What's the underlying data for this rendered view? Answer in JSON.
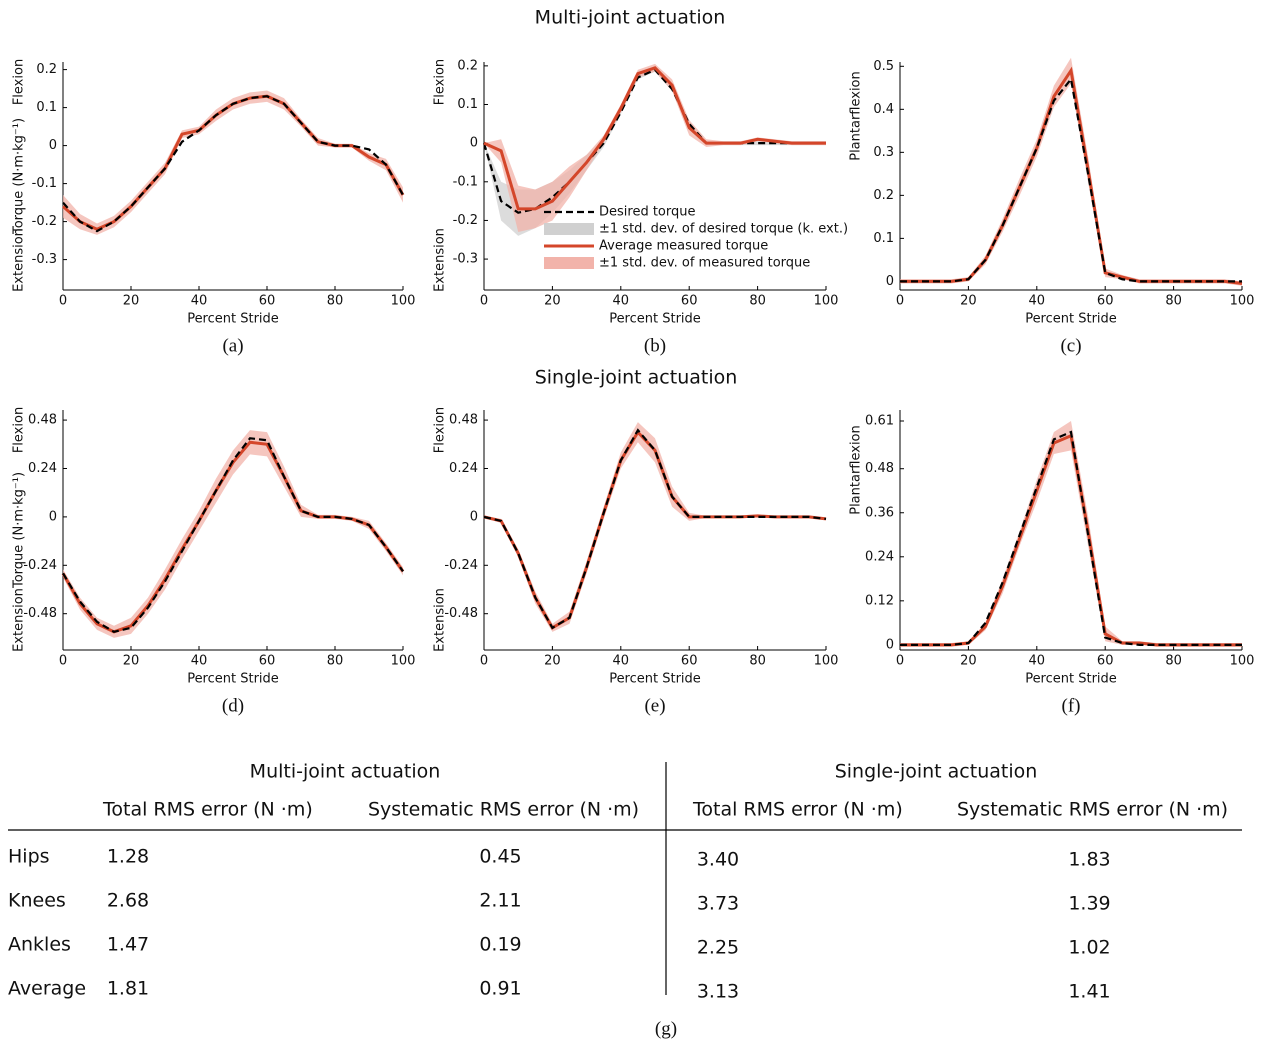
{
  "headings": [
    "Multi-joint actuation",
    "Single-joint actuation"
  ],
  "chart_data": [
    {
      "type": "line",
      "caption": "(a)",
      "xlabel": "Percent Stride",
      "ylabel": "Torque (N·m·kg⁻¹)",
      "ylabel_top": "Flexion",
      "ylabel_bottom": "Extension",
      "x": [
        0,
        5,
        10,
        15,
        20,
        25,
        30,
        35,
        40,
        45,
        50,
        55,
        60,
        65,
        70,
        75,
        80,
        85,
        90,
        95,
        100
      ],
      "xlim": [
        0,
        100
      ],
      "xticks": [
        0,
        20,
        40,
        60,
        80,
        100
      ],
      "ylim": [
        -0.38,
        0.22
      ],
      "yticks": [
        -0.3,
        -0.2,
        -0.1,
        0,
        0.1,
        0.2
      ],
      "series": [
        {
          "color": "#d4462a",
          "dash": false,
          "std_color": "#f2b3aa",
          "values": [
            -0.16,
            -0.2,
            -0.22,
            -0.2,
            -0.16,
            -0.11,
            -0.06,
            0.03,
            0.04,
            0.08,
            0.11,
            0.125,
            0.13,
            0.11,
            0.06,
            0.01,
            0.0,
            0.0,
            -0.03,
            -0.05,
            -0.13
          ],
          "std": [
            0.03,
            0.02,
            0.015,
            0.015,
            0.015,
            0.015,
            0.015,
            0.01,
            0.01,
            0.015,
            0.015,
            0.015,
            0.015,
            0.015,
            0.01,
            0.01,
            0.005,
            0.005,
            0.01,
            0.015,
            0.02
          ]
        },
        {
          "color": "#000000",
          "dash": true,
          "values": [
            -0.15,
            -0.2,
            -0.225,
            -0.2,
            -0.16,
            -0.11,
            -0.06,
            0.01,
            0.04,
            0.08,
            0.11,
            0.125,
            0.13,
            0.11,
            0.06,
            0.01,
            0.0,
            0.0,
            -0.01,
            -0.05,
            -0.13
          ]
        }
      ]
    },
    {
      "type": "line",
      "caption": "(b)",
      "xlabel": "Percent Stride",
      "ylabel_top": "Flexion",
      "ylabel_bottom": "Extension",
      "legend": "lower center",
      "x": [
        0,
        5,
        10,
        15,
        20,
        25,
        30,
        35,
        40,
        45,
        50,
        55,
        60,
        65,
        70,
        75,
        80,
        85,
        90,
        95,
        100
      ],
      "xlim": [
        0,
        100
      ],
      "xticks": [
        0,
        20,
        40,
        60,
        80,
        100
      ],
      "ylim": [
        -0.38,
        0.21
      ],
      "yticks": [
        -0.3,
        -0.2,
        -0.1,
        0,
        0.1,
        0.2
      ],
      "series": [
        {
          "name": "Desired torque",
          "color": "#000000",
          "dash": true,
          "std_name": "±1 std. dev. of desired torque (k. ext.)",
          "std_color": "#d0d0d0",
          "values": [
            0,
            -0.15,
            -0.18,
            -0.17,
            -0.14,
            -0.1,
            -0.05,
            0.0,
            0.08,
            0.17,
            0.19,
            0.14,
            0.05,
            0,
            0,
            0,
            0,
            0,
            0,
            0,
            0
          ],
          "std": [
            0,
            0.05,
            0.06,
            0.05,
            0.04,
            0.03,
            0.02,
            0.01,
            0.005,
            0.005,
            0.005,
            0.005,
            0.005,
            0.005,
            0.005,
            0.005,
            0.005,
            0.005,
            0.005,
            0.005,
            0.005
          ]
        },
        {
          "name": "Average measured torque",
          "color": "#d4462a",
          "dash": false,
          "std_name": "±1 std. dev. of measured torque",
          "std_color": "#f2b3aa",
          "values": [
            0,
            -0.02,
            -0.17,
            -0.17,
            -0.15,
            -0.1,
            -0.05,
            0.01,
            0.09,
            0.18,
            0.195,
            0.15,
            0.04,
            0,
            0,
            0,
            0.01,
            0.005,
            0,
            0,
            0
          ],
          "std": [
            0,
            0.03,
            0.06,
            0.05,
            0.05,
            0.04,
            0.02,
            0.01,
            0.01,
            0.01,
            0.01,
            0.015,
            0.02,
            0.01,
            0.005,
            0.005,
            0.005,
            0.005,
            0.005,
            0.005,
            0.005
          ]
        }
      ]
    },
    {
      "type": "line",
      "caption": "(c)",
      "xlabel": "Percent Stride",
      "ylabel_top": "Plantarflexion",
      "x": [
        0,
        5,
        10,
        15,
        20,
        25,
        30,
        35,
        40,
        45,
        50,
        55,
        60,
        65,
        70,
        75,
        80,
        85,
        90,
        95,
        100
      ],
      "xlim": [
        0,
        100
      ],
      "xticks": [
        0,
        20,
        40,
        60,
        80,
        100
      ],
      "ylim": [
        -0.02,
        0.51
      ],
      "yticks": [
        0,
        0.1,
        0.2,
        0.3,
        0.4,
        0.5
      ],
      "series": [
        {
          "color": "#d4462a",
          "dash": false,
          "std_color": "#f2b3aa",
          "values": [
            0,
            0,
            0,
            0,
            0.005,
            0.05,
            0.13,
            0.22,
            0.31,
            0.43,
            0.49,
            0.26,
            0.02,
            0.01,
            0,
            0,
            0,
            0,
            0,
            0,
            -0.005
          ],
          "std": [
            0.005,
            0.005,
            0.005,
            0.005,
            0.005,
            0.01,
            0.015,
            0.02,
            0.02,
            0.025,
            0.03,
            0.03,
            0.01,
            0.005,
            0.005,
            0.005,
            0.005,
            0.005,
            0.005,
            0.005,
            0.005
          ]
        },
        {
          "color": "#000000",
          "dash": true,
          "values": [
            0,
            0,
            0,
            0,
            0.005,
            0.05,
            0.13,
            0.22,
            0.31,
            0.42,
            0.47,
            0.25,
            0.02,
            0.005,
            0,
            0,
            0,
            0,
            0,
            0,
            0
          ]
        }
      ]
    },
    {
      "type": "line",
      "caption": "(d)",
      "xlabel": "Percent Stride",
      "ylabel": "Torque (N·m·kg⁻¹)",
      "ylabel_top": "Flexion",
      "ylabel_bottom": "Extension",
      "x": [
        0,
        5,
        10,
        15,
        20,
        25,
        30,
        35,
        40,
        45,
        50,
        55,
        60,
        65,
        70,
        75,
        80,
        85,
        90,
        95,
        100
      ],
      "xlim": [
        0,
        100
      ],
      "xticks": [
        0,
        20,
        40,
        60,
        80,
        100
      ],
      "ylim": [
        -0.66,
        0.53
      ],
      "yticks": [
        -0.48,
        -0.24,
        0,
        0.24,
        0.48
      ],
      "series": [
        {
          "color": "#d4462a",
          "dash": false,
          "std_color": "#f2b3aa",
          "values": [
            -0.28,
            -0.43,
            -0.53,
            -0.57,
            -0.54,
            -0.44,
            -0.31,
            -0.16,
            -0.02,
            0.13,
            0.27,
            0.37,
            0.36,
            0.2,
            0.03,
            0.0,
            0,
            -0.01,
            -0.04,
            -0.15,
            -0.27
          ],
          "std": [
            0.02,
            0.03,
            0.03,
            0.03,
            0.04,
            0.04,
            0.05,
            0.05,
            0.05,
            0.06,
            0.06,
            0.06,
            0.06,
            0.05,
            0.03,
            0.01,
            0.01,
            0.01,
            0.02,
            0.02,
            0.02
          ]
        },
        {
          "color": "#000000",
          "dash": true,
          "values": [
            -0.28,
            -0.42,
            -0.52,
            -0.57,
            -0.55,
            -0.45,
            -0.32,
            -0.17,
            -0.02,
            0.13,
            0.28,
            0.39,
            0.38,
            0.2,
            0.03,
            0.0,
            0,
            -0.01,
            -0.04,
            -0.15,
            -0.27
          ]
        }
      ]
    },
    {
      "type": "line",
      "caption": "(e)",
      "xlabel": "Percent Stride",
      "ylabel_top": "Flexion",
      "ylabel_bottom": "Extension",
      "x": [
        0,
        5,
        10,
        15,
        20,
        25,
        30,
        35,
        40,
        45,
        50,
        55,
        60,
        65,
        70,
        75,
        80,
        85,
        90,
        95,
        100
      ],
      "xlim": [
        0,
        100
      ],
      "xticks": [
        0,
        20,
        40,
        60,
        80,
        100
      ],
      "ylim": [
        -0.66,
        0.53
      ],
      "yticks": [
        -0.48,
        -0.24,
        0,
        0.24,
        0.48
      ],
      "series": [
        {
          "color": "#d4462a",
          "dash": false,
          "std_color": "#f2b3aa",
          "values": [
            0,
            -0.02,
            -0.18,
            -0.4,
            -0.55,
            -0.5,
            -0.25,
            0.02,
            0.28,
            0.42,
            0.33,
            0.1,
            0,
            0,
            0,
            0,
            0.005,
            0,
            0,
            0,
            -0.01
          ],
          "std": [
            0.005,
            0.01,
            0.02,
            0.03,
            0.02,
            0.03,
            0.03,
            0.03,
            0.04,
            0.05,
            0.06,
            0.05,
            0.02,
            0.005,
            0.005,
            0.005,
            0.005,
            0.005,
            0.005,
            0.005,
            0.005
          ]
        },
        {
          "color": "#000000",
          "dash": true,
          "values": [
            0,
            -0.02,
            -0.18,
            -0.4,
            -0.55,
            -0.5,
            -0.25,
            0.02,
            0.28,
            0.43,
            0.33,
            0.1,
            0,
            0,
            0,
            0,
            0,
            0,
            0,
            0,
            -0.01
          ]
        }
      ]
    },
    {
      "type": "line",
      "caption": "(f)",
      "xlabel": "Percent Stride",
      "ylabel_top": "Plantarflexion",
      "x": [
        0,
        5,
        10,
        15,
        20,
        25,
        30,
        35,
        40,
        45,
        50,
        55,
        60,
        65,
        70,
        75,
        80,
        85,
        90,
        95,
        100
      ],
      "xlim": [
        0,
        100
      ],
      "xticks": [
        0,
        20,
        40,
        60,
        80,
        100
      ],
      "ylim": [
        -0.014,
        0.64
      ],
      "yticks": [
        0,
        0.12,
        0.24,
        0.36,
        0.48,
        0.61
      ],
      "series": [
        {
          "color": "#d4462a",
          "dash": false,
          "std_color": "#f2b3aa",
          "values": [
            0,
            0,
            0,
            0,
            0.005,
            0.05,
            0.16,
            0.29,
            0.42,
            0.55,
            0.57,
            0.31,
            0.03,
            0.005,
            0.005,
            0,
            0,
            0,
            0,
            0,
            0
          ],
          "std": [
            0.005,
            0.005,
            0.005,
            0.005,
            0.005,
            0.01,
            0.02,
            0.02,
            0.03,
            0.03,
            0.04,
            0.04,
            0.02,
            0.005,
            0.005,
            0.005,
            0.005,
            0.005,
            0.005,
            0.005,
            0.005
          ]
        },
        {
          "color": "#000000",
          "dash": true,
          "values": [
            0,
            0,
            0,
            0,
            0.005,
            0.06,
            0.17,
            0.3,
            0.43,
            0.56,
            0.58,
            0.3,
            0.02,
            0.005,
            0,
            0,
            0,
            0,
            0,
            0,
            0
          ]
        }
      ]
    }
  ],
  "table": {
    "groups": [
      "Multi-joint actuation",
      "Single-joint actuation"
    ],
    "columns": [
      "Total RMS error (N ·m)",
      "Systematic RMS error (N ·m)",
      "Total RMS error (N ·m)",
      "Systematic RMS error (N ·m)"
    ],
    "rows": [
      [
        "Hips",
        "1.28",
        "0.45",
        "3.40",
        "1.83"
      ],
      [
        "Knees",
        "2.68",
        "2.11",
        "3.73",
        "1.39"
      ],
      [
        "Ankles",
        "1.47",
        "0.19",
        "2.25",
        "1.02"
      ],
      [
        "Average",
        "1.81",
        "0.91",
        "3.13",
        "1.41"
      ]
    ],
    "caption": "(g)"
  }
}
